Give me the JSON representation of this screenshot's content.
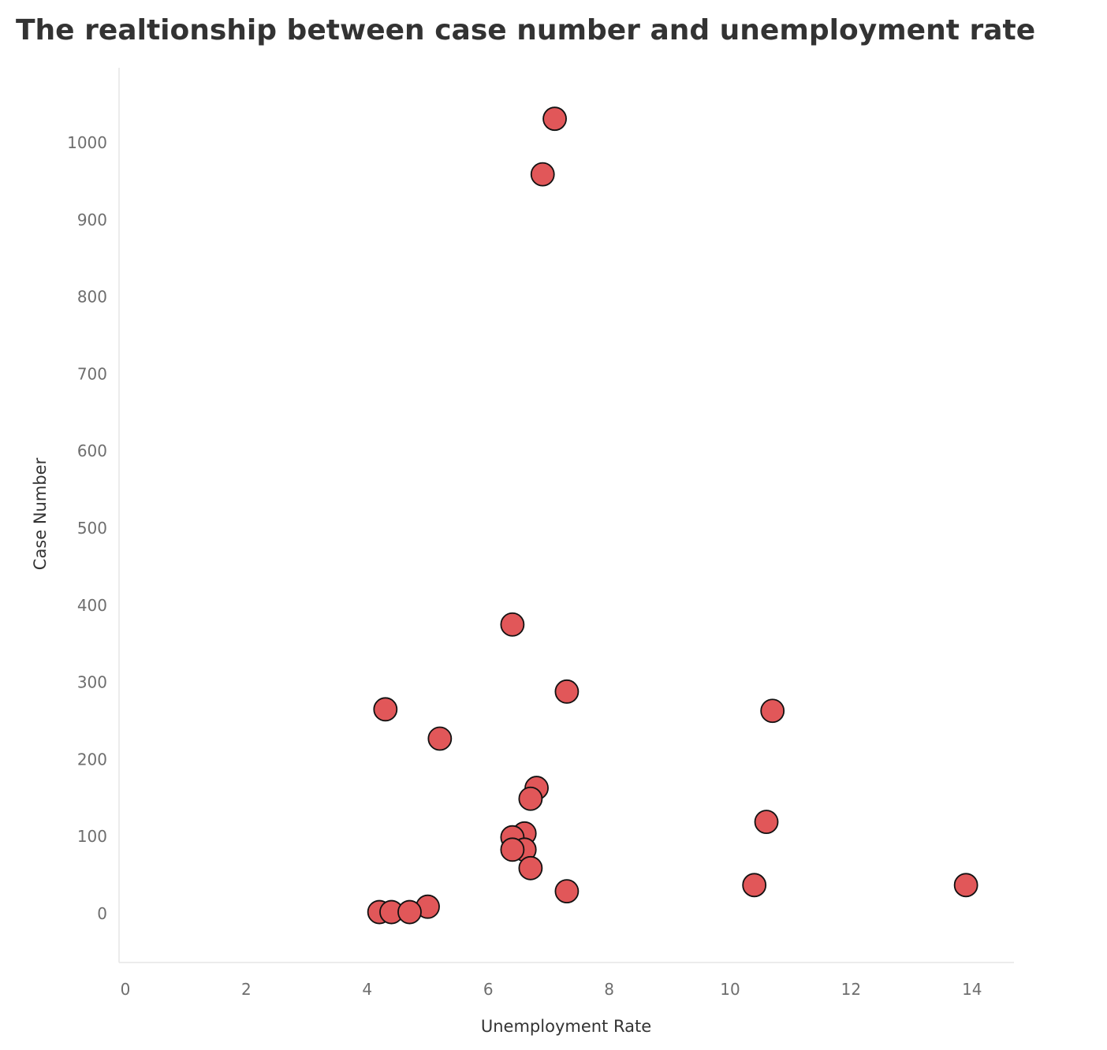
{
  "chart_data": {
    "type": "scatter",
    "title": "The realtionship between case number and unemployment rate",
    "xlabel": "Unemployment Rate",
    "ylabel": "Case Number",
    "xlim": [
      0,
      14.8
    ],
    "ylim": [
      -64,
      1094
    ],
    "xticks": [
      0,
      2,
      4,
      6,
      8,
      10,
      12,
      14
    ],
    "yticks": [
      0,
      100,
      200,
      300,
      400,
      500,
      600,
      700,
      800,
      900,
      1000
    ],
    "grid": false,
    "marker_color": "#e15759",
    "marker_edge_color": "#111111",
    "points": [
      {
        "x": 7.1,
        "y": 1031
      },
      {
        "x": 6.9,
        "y": 959
      },
      {
        "x": 6.4,
        "y": 375
      },
      {
        "x": 7.3,
        "y": 288
      },
      {
        "x": 4.3,
        "y": 265
      },
      {
        "x": 10.7,
        "y": 263
      },
      {
        "x": 5.2,
        "y": 227
      },
      {
        "x": 6.8,
        "y": 163
      },
      {
        "x": 6.7,
        "y": 149
      },
      {
        "x": 10.6,
        "y": 119
      },
      {
        "x": 6.6,
        "y": 104
      },
      {
        "x": 6.4,
        "y": 99
      },
      {
        "x": 6.6,
        "y": 83
      },
      {
        "x": 6.4,
        "y": 83
      },
      {
        "x": 6.7,
        "y": 59
      },
      {
        "x": 10.4,
        "y": 37
      },
      {
        "x": 13.9,
        "y": 37
      },
      {
        "x": 7.3,
        "y": 29
      },
      {
        "x": 5.0,
        "y": 9
      },
      {
        "x": 4.2,
        "y": 2
      },
      {
        "x": 4.4,
        "y": 2
      },
      {
        "x": 4.7,
        "y": 2
      }
    ]
  }
}
